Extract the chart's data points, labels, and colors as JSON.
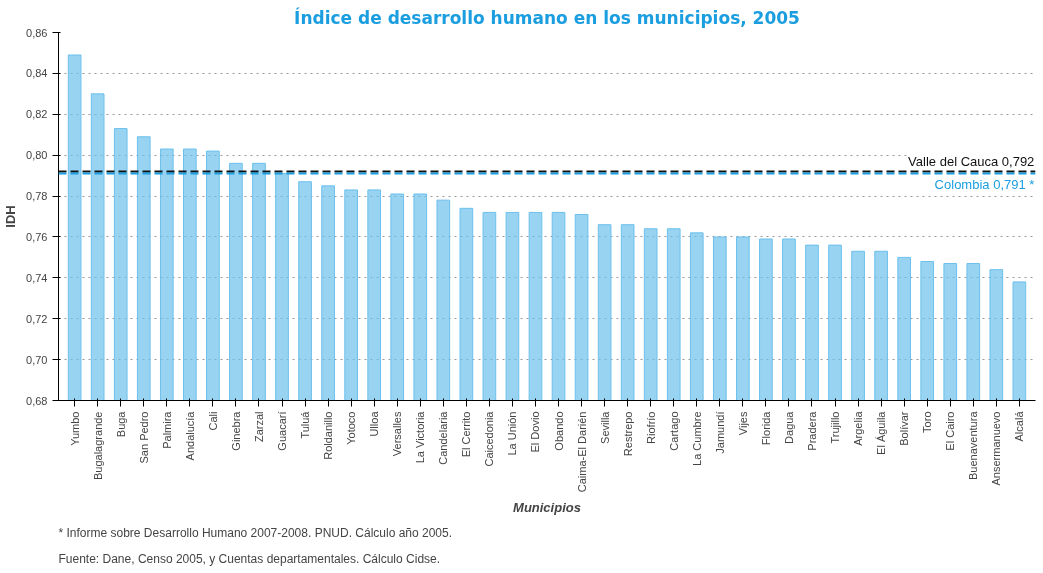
{
  "chart_data": {
    "type": "bar",
    "title": "Índice de desarrollo humano en los municipios, 2005",
    "xlabel": "Municipios",
    "ylabel": "IDH",
    "categories": [
      "Yumbo",
      "Bugalagrande",
      "Buga",
      "San Pedro",
      "Palmira",
      "Andalucía",
      "Cali",
      "Ginebra",
      "Zarzal",
      "Guacarí",
      "Tuluá",
      "Roldanillo",
      "Yotoco",
      "Ulloa",
      "Versalles",
      "La Victoria",
      "Candelaria",
      "El Cerrito",
      "Caicedonia",
      "La Unión",
      "El Dovio",
      "Obando",
      "Caima-El Darién",
      "Sevilla",
      "Restrepo",
      "Riofrío",
      "Cartago",
      "La Cumbre",
      "Jamundí",
      "Vijes",
      "Florida",
      "Dagua",
      "Pradera",
      "Trujillo",
      "Argelia",
      "El Águila",
      "Bolívar",
      "Toro",
      "El Cairo",
      "Buenaventura",
      "Ansermanuevo",
      "Alcalá"
    ],
    "values": [
      0.849,
      0.83,
      0.813,
      0.809,
      0.803,
      0.803,
      0.802,
      0.796,
      0.796,
      0.791,
      0.787,
      0.785,
      0.783,
      0.783,
      0.781,
      0.781,
      0.778,
      0.774,
      0.772,
      0.772,
      0.772,
      0.772,
      0.771,
      0.766,
      0.766,
      0.764,
      0.764,
      0.762,
      0.76,
      0.76,
      0.759,
      0.759,
      0.756,
      0.756,
      0.753,
      0.753,
      0.75,
      0.748,
      0.747,
      0.747,
      0.744,
      0.738
    ],
    "color": "#6cc0ec",
    "ylim": [
      0.68,
      0.86
    ],
    "yticks": [
      {
        "value": 0.68,
        "label": "0,68"
      },
      {
        "value": 0.7,
        "label": "0,70"
      },
      {
        "value": 0.72,
        "label": "0,72"
      },
      {
        "value": 0.74,
        "label": "0,74"
      },
      {
        "value": 0.76,
        "label": "0,76"
      },
      {
        "value": 0.78,
        "label": "0,78"
      },
      {
        "value": 0.8,
        "label": "0,80"
      },
      {
        "value": 0.82,
        "label": "0,82"
      },
      {
        "value": 0.84,
        "label": "0,84"
      },
      {
        "value": 0.86,
        "label": "0,86"
      }
    ],
    "grid": "y",
    "ref_lines": [
      {
        "axis": "y",
        "value": 0.792,
        "label": "Valle del Cauca 0,792",
        "color": "#111111",
        "line_style": "dashed"
      },
      {
        "axis": "y",
        "value": 0.791,
        "label": "Colombia 0,791 *",
        "color": "#1a9ee0",
        "line_style": "dashed"
      }
    ],
    "annotations": [
      "* Informe sobre Desarrollo Humano 2007-2008. PNUD. Cálculo año 2005.",
      "Fuente: Dane, Censo 2005, y Cuentas departamentales. Cálculo Cidse."
    ]
  }
}
